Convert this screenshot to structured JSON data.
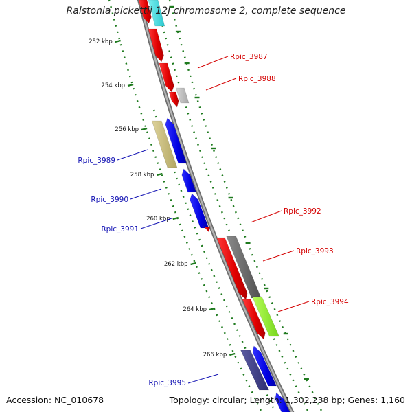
{
  "title": "Ralstonia pickettii 12J chromosome 2, complete sequence",
  "footer": {
    "accession": "Accession: NC_010678",
    "info": "Topology: circular; Length: 1,302,238 bp; Genes: 1,160"
  },
  "colors": {
    "backbone": "#8a8a8a",
    "forward_label": "#d40000",
    "reverse_label": "#1414b4",
    "ticks": "#1e7a1e"
  },
  "ruler": [
    "252 kbp",
    "254 kbp",
    "256 kbp",
    "258 kbp",
    "260 kbp",
    "262 kbp",
    "264 kbp",
    "266 kbp"
  ],
  "forward_labels": [
    "Rpic_3987",
    "Rpic_3988",
    "Rpic_3992",
    "Rpic_3993",
    "Rpic_3994"
  ],
  "reverse_labels": [
    "Rpic_3989",
    "Rpic_3990",
    "Rpic_3991",
    "Rpic_3995"
  ]
}
